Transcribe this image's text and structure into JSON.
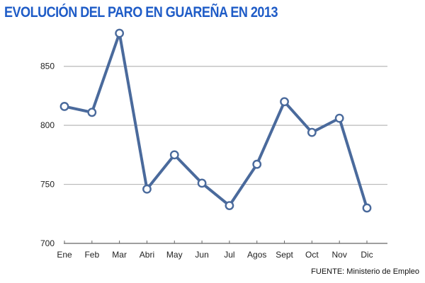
{
  "colors": {
    "title": "#1f5cc7",
    "line": "#4a6a9c",
    "marker_fill": "#ffffff",
    "grid": "#b9b9b9",
    "axis": "#666666",
    "text": "#222222"
  },
  "chart_data": {
    "type": "line",
    "title": "EVOLUCIÓN DEL PARO EN GUAREÑA EN 2013",
    "xlabel": "",
    "ylabel": "",
    "categories": [
      "Ene",
      "Feb",
      "Mar",
      "Abri",
      "May",
      "Jun",
      "Jul",
      "Agos",
      "Sept",
      "Oct",
      "Nov",
      "Dic"
    ],
    "series": [
      {
        "values": [
          816,
          811,
          878,
          746,
          775,
          751,
          732,
          767,
          820,
          794,
          806,
          730
        ]
      }
    ],
    "ylim": [
      700,
      875
    ],
    "yticks": [
      700,
      750,
      800,
      850
    ],
    "grid": true,
    "legend": "none",
    "source": "FUENTE: Ministerio de Empleo"
  }
}
